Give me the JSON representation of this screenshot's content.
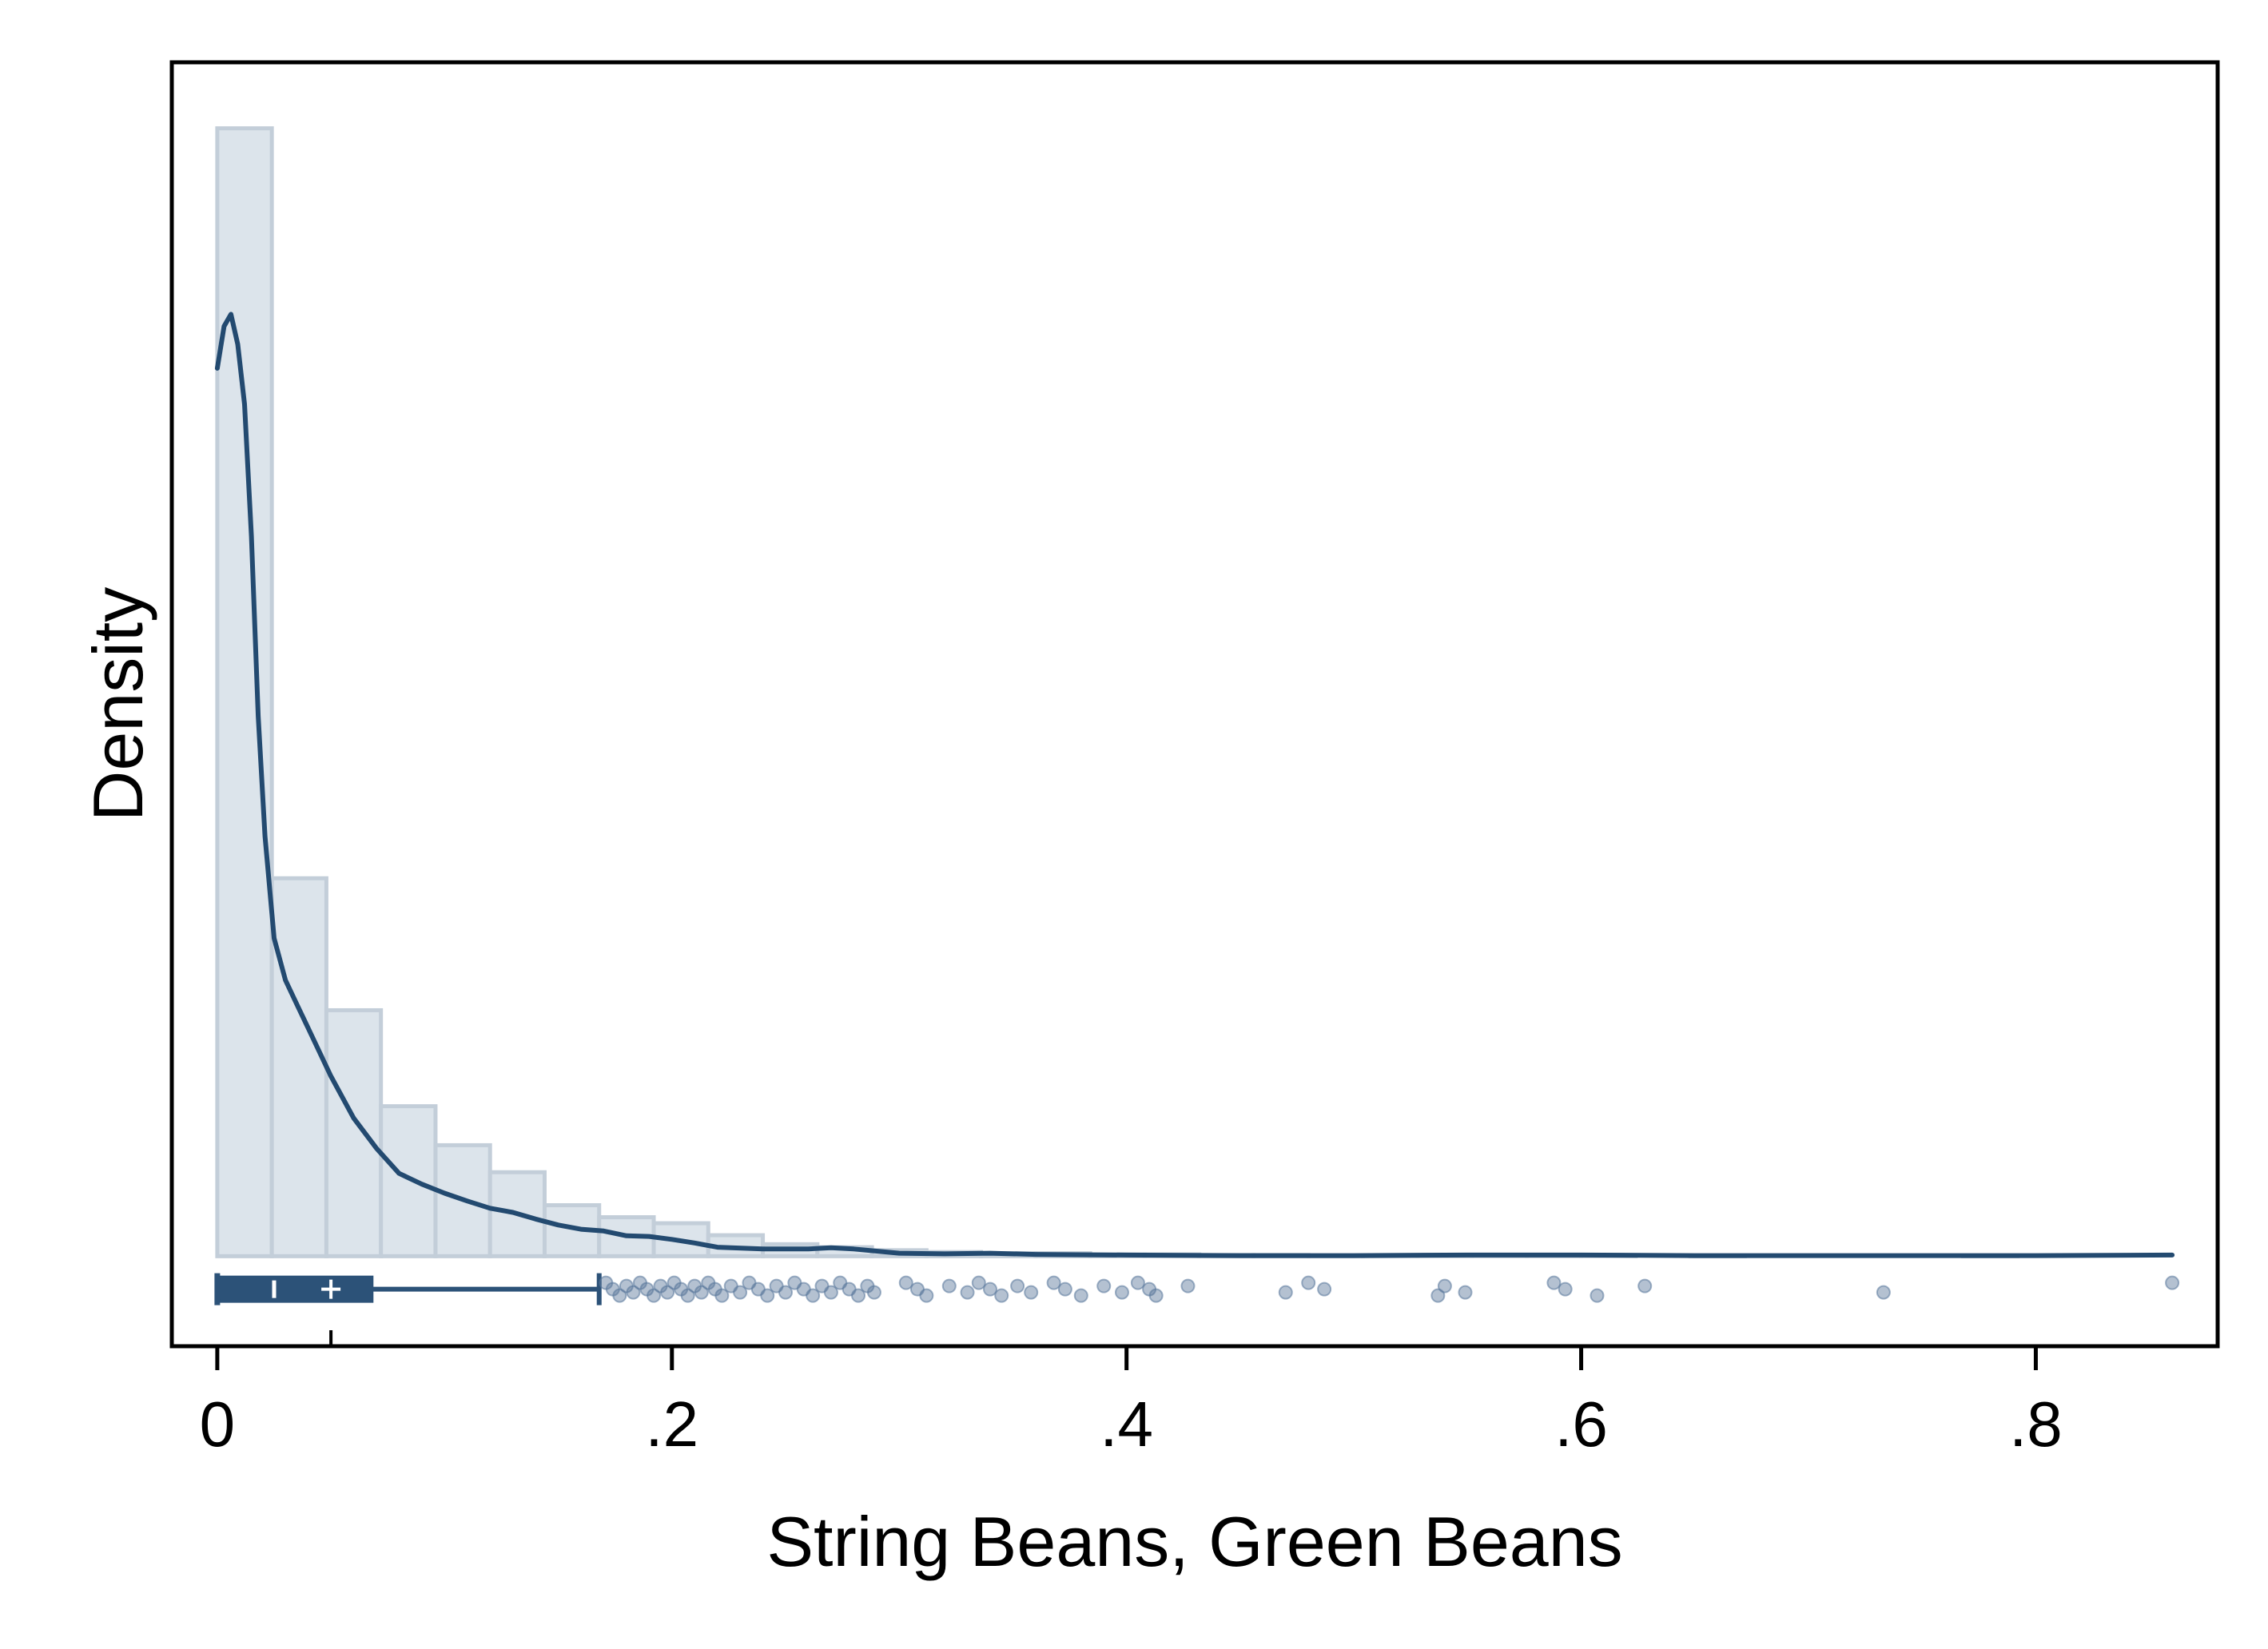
{
  "chart_data": {
    "type": "histogram",
    "xlabel": "String Beans, Green Beans",
    "ylabel": "Density",
    "xlim": [
      -0.02,
      0.88
    ],
    "xticks": [
      0,
      0.2,
      0.4,
      0.6,
      0.8
    ],
    "xtick_labels": [
      "0",
      ".2",
      ".4",
      ".6",
      ".8"
    ],
    "ylim": [
      -1.5,
      19.9
    ],
    "grid": false,
    "legend": "none",
    "colors": {
      "bar_fill": "#dce4eb",
      "bar_stroke": "#c3ced9",
      "line": "#234a70",
      "box": "#2c5278",
      "points": "#58769a"
    },
    "histogram": {
      "bin_width": 0.024,
      "bin_start": 0,
      "densities": [
        18.8,
        6.3,
        4.1,
        2.5,
        1.85,
        1.4,
        0.85,
        0.65,
        0.55,
        0.35,
        0.2,
        0.15,
        0.1,
        0.07,
        0.05,
        0.05,
        0.03,
        0.03,
        0.02,
        0.02,
        0.01,
        0.01,
        0.01,
        0.01,
        0.02,
        0.01,
        0.0,
        0.01,
        0.0,
        0.0,
        0.0,
        0.0,
        0.01,
        0.0,
        0.0,
        0.0
      ]
    },
    "kde": {
      "x": [
        0,
        0.003,
        0.006,
        0.009,
        0.012,
        0.015,
        0.018,
        0.021,
        0.025,
        0.03,
        0.035,
        0.04,
        0.05,
        0.06,
        0.07,
        0.08,
        0.09,
        0.1,
        0.11,
        0.12,
        0.13,
        0.14,
        0.15,
        0.16,
        0.17,
        0.18,
        0.19,
        0.2,
        0.21,
        0.22,
        0.24,
        0.26,
        0.27,
        0.28,
        0.3,
        0.32,
        0.34,
        0.36,
        0.4,
        0.45,
        0.5,
        0.55,
        0.6,
        0.65,
        0.7,
        0.75,
        0.8,
        0.86
      ],
      "y": [
        14.8,
        15.5,
        15.7,
        15.2,
        14.2,
        12.0,
        9.0,
        7.0,
        5.3,
        4.6,
        4.2,
        3.8,
        3.0,
        2.3,
        1.8,
        1.38,
        1.2,
        1.05,
        0.92,
        0.8,
        0.73,
        0.62,
        0.52,
        0.45,
        0.42,
        0.34,
        0.33,
        0.28,
        0.22,
        0.15,
        0.12,
        0.12,
        0.14,
        0.12,
        0.05,
        0.04,
        0.05,
        0.03,
        0.02,
        0.01,
        0.01,
        0.02,
        0.02,
        0.01,
        0.01,
        0.01,
        0.01,
        0.02
      ]
    },
    "boxplot": {
      "y": -0.55,
      "whisker_low": 0,
      "q1": 0,
      "median": 0.025,
      "mean": 0.05,
      "q3": 0.068,
      "whisker_high": 0.168,
      "outliers": [
        0.171,
        0.174,
        0.177,
        0.18,
        0.183,
        0.186,
        0.189,
        0.192,
        0.195,
        0.198,
        0.201,
        0.204,
        0.207,
        0.21,
        0.213,
        0.216,
        0.219,
        0.222,
        0.226,
        0.23,
        0.234,
        0.238,
        0.242,
        0.246,
        0.25,
        0.254,
        0.258,
        0.262,
        0.266,
        0.27,
        0.274,
        0.278,
        0.282,
        0.286,
        0.289,
        0.303,
        0.308,
        0.312,
        0.322,
        0.33,
        0.335,
        0.34,
        0.345,
        0.352,
        0.358,
        0.368,
        0.373,
        0.38,
        0.39,
        0.398,
        0.405,
        0.41,
        0.413,
        0.427,
        0.47,
        0.48,
        0.487,
        0.537,
        0.54,
        0.549,
        0.588,
        0.593,
        0.607,
        0.628,
        0.733,
        0.86
      ]
    }
  }
}
